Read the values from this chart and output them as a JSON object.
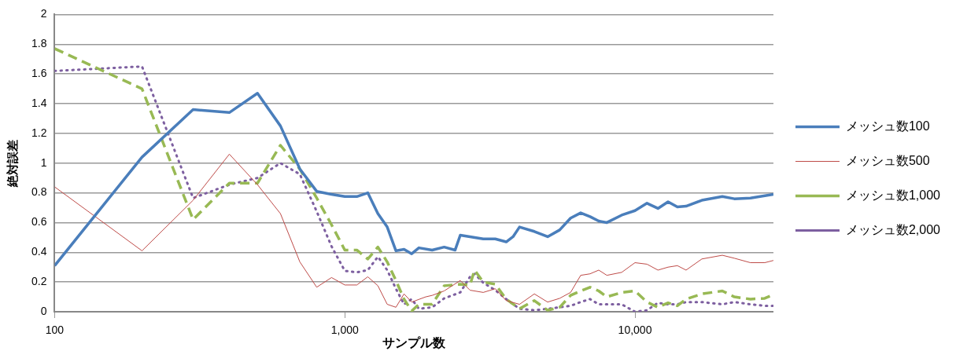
{
  "chart_data": {
    "type": "line",
    "xlabel": "サンプル数",
    "ylabel": "絶対誤差",
    "log": "x",
    "xlim": [
      100,
      30000
    ],
    "xticks": [
      100,
      {
        "value": 1000,
        "label": "1,000"
      },
      {
        "value": 10000,
        "label": "10,000"
      }
    ],
    "ylim": [
      0,
      2
    ],
    "yticks": [
      0,
      0.2,
      0.4,
      0.6,
      0.8,
      1,
      1.2,
      1.4,
      1.6,
      1.8,
      2
    ],
    "grid": "y",
    "legend": "right",
    "marker": "none",
    "series": [
      {
        "name": "メッシュ数100",
        "color": "#4a7ebb",
        "line_style": "solid",
        "x": [
          100,
          200,
          300,
          400,
          500,
          600,
          700,
          800,
          900,
          1000,
          1100,
          1200,
          1300,
          1400,
          1500,
          1600,
          1700,
          1800,
          2000,
          2200,
          2400,
          2500,
          2700,
          3000,
          3300,
          3600,
          3800,
          4000,
          4500,
          5000,
          5500,
          6000,
          6500,
          7000,
          7500,
          8000,
          9000,
          10000,
          11000,
          12000,
          13000,
          14000,
          15000,
          17000,
          20000,
          22000,
          25000,
          30000
        ],
        "values": [
          0.31,
          1.04,
          1.36,
          1.34,
          1.47,
          1.25,
          0.96,
          0.81,
          0.79,
          0.775,
          0.775,
          0.8,
          0.66,
          0.57,
          0.41,
          0.42,
          0.39,
          0.43,
          0.415,
          0.435,
          0.415,
          0.515,
          0.505,
          0.49,
          0.49,
          0.47,
          0.505,
          0.57,
          0.54,
          0.505,
          0.55,
          0.63,
          0.665,
          0.64,
          0.61,
          0.6,
          0.65,
          0.68,
          0.73,
          0.695,
          0.74,
          0.705,
          0.71,
          0.75,
          0.775,
          0.76,
          0.765,
          0.79
        ]
      },
      {
        "name": "メッシュ数500",
        "color": "#be4b48",
        "line_style": "solid",
        "x": [
          100,
          200,
          300,
          400,
          500,
          600,
          700,
          800,
          900,
          1000,
          1100,
          1200,
          1300,
          1400,
          1500,
          1600,
          1700,
          1900,
          2000,
          2200,
          2500,
          2700,
          3000,
          3300,
          3600,
          4000,
          4500,
          5000,
          5500,
          6000,
          6500,
          7000,
          7500,
          8000,
          9000,
          10000,
          11000,
          12000,
          13000,
          14000,
          15000,
          17000,
          20000,
          22000,
          25000,
          28000,
          30000
        ],
        "values": [
          0.84,
          0.41,
          0.75,
          1.06,
          0.855,
          0.66,
          0.335,
          0.165,
          0.23,
          0.18,
          0.18,
          0.235,
          0.175,
          0.05,
          0.03,
          0.12,
          0.065,
          0.1,
          0.11,
          0.14,
          0.21,
          0.145,
          0.13,
          0.155,
          0.075,
          0.05,
          0.12,
          0.065,
          0.09,
          0.13,
          0.245,
          0.255,
          0.28,
          0.245,
          0.265,
          0.33,
          0.32,
          0.28,
          0.3,
          0.31,
          0.28,
          0.355,
          0.38,
          0.36,
          0.33,
          0.33,
          0.345
        ]
      },
      {
        "name": "メッシュ数1,000",
        "color": "#98b954",
        "line_style": "dashed",
        "x": [
          100,
          200,
          300,
          400,
          500,
          600,
          700,
          800,
          900,
          1000,
          1100,
          1200,
          1300,
          1400,
          1500,
          1600,
          1700,
          1800,
          2000,
          2200,
          2500,
          2700,
          2800,
          3000,
          3300,
          3600,
          4000,
          4500,
          5000,
          5500,
          6000,
          6500,
          7000,
          7500,
          8000,
          9000,
          10000,
          11000,
          12000,
          13000,
          14000,
          15000,
          17000,
          20000,
          22000,
          25000,
          28000,
          30000
        ],
        "values": [
          1.77,
          1.5,
          0.62,
          0.865,
          0.865,
          1.12,
          0.96,
          0.765,
          0.585,
          0.415,
          0.415,
          0.355,
          0.435,
          0.335,
          0.21,
          0.085,
          0.005,
          0.05,
          0.05,
          0.175,
          0.185,
          0.18,
          0.28,
          0.2,
          0.185,
          0.085,
          0.02,
          0.075,
          0.01,
          0.03,
          0.11,
          0.14,
          0.165,
          0.14,
          0.1,
          0.13,
          0.14,
          0.065,
          0.03,
          0.06,
          0.04,
          0.085,
          0.12,
          0.14,
          0.1,
          0.085,
          0.09,
          0.115
        ]
      },
      {
        "name": "メッシュ数2,000",
        "color": "#7d5fa0",
        "line_style": "dotted",
        "x": [
          100,
          200,
          300,
          400,
          500,
          600,
          700,
          800,
          900,
          1000,
          1100,
          1200,
          1300,
          1400,
          1500,
          1600,
          1700,
          1800,
          2000,
          2200,
          2500,
          2700,
          2800,
          3000,
          3300,
          3600,
          4000,
          4500,
          5000,
          5500,
          6000,
          6500,
          7000,
          7500,
          8000,
          9000,
          10000,
          11000,
          12000,
          13000,
          14000,
          15000,
          17000,
          20000,
          22000,
          25000,
          28000,
          30000
        ],
        "values": [
          1.62,
          1.65,
          0.765,
          0.855,
          0.9,
          1,
          0.925,
          0.675,
          0.44,
          0.275,
          0.265,
          0.28,
          0.37,
          0.28,
          0.155,
          0.05,
          0.085,
          0.02,
          0.03,
          0.09,
          0.13,
          0.235,
          0.255,
          0.195,
          0.145,
          0.085,
          0.02,
          0.01,
          0.02,
          0.03,
          0.04,
          0.065,
          0.085,
          0.05,
          0.05,
          0.05,
          0,
          0.01,
          0.06,
          0.05,
          0.05,
          0.065,
          0.065,
          0.05,
          0.065,
          0.05,
          0.04,
          0.04
        ]
      }
    ]
  }
}
